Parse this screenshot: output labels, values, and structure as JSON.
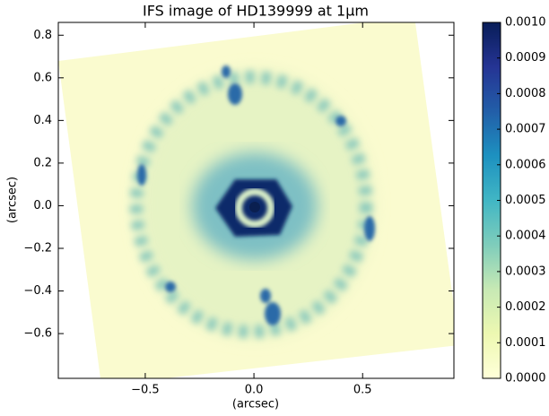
{
  "chart_data": {
    "type": "heatmap",
    "title": "IFS image of HD139999 at 1μm",
    "xlabel": "(arcsec)",
    "ylabel": "(arcsec)",
    "xlim": [
      -0.9,
      0.92
    ],
    "ylim": [
      -0.81,
      0.86
    ],
    "xticks": [
      {
        "value": -0.5,
        "label": "−0.5"
      },
      {
        "value": 0,
        "label": "0.0"
      },
      {
        "value": 0.5,
        "label": "0.5"
      }
    ],
    "yticks": [
      {
        "value": -0.6,
        "label": "−0.6"
      },
      {
        "value": -0.4,
        "label": "−0.4"
      },
      {
        "value": -0.2,
        "label": "−0.2"
      },
      {
        "value": 0,
        "label": "0.0"
      },
      {
        "value": 0.2,
        "label": "0.2"
      },
      {
        "value": 0.4,
        "label": "0.4"
      },
      {
        "value": 0.6,
        "label": "0.6"
      },
      {
        "value": 0.8,
        "label": "0.8"
      }
    ],
    "colormap": "YlGnBu",
    "clim": [
      0,
      0.001
    ],
    "cticks": [
      {
        "value": 0,
        "label": "0.0000"
      },
      {
        "value": 0.0001,
        "label": "0.0001"
      },
      {
        "value": 0.0002,
        "label": "0.0002"
      },
      {
        "value": 0.0003,
        "label": "0.0003"
      },
      {
        "value": 0.0004,
        "label": "0.0004"
      },
      {
        "value": 0.0005,
        "label": "0.0005"
      },
      {
        "value": 0.0006,
        "label": "0.0006"
      },
      {
        "value": 0.0007,
        "label": "0.0007"
      },
      {
        "value": 0.0008,
        "label": "0.0008"
      },
      {
        "value": 0.0009,
        "label": "0.0009"
      },
      {
        "value": 0.001,
        "label": "0.0010"
      }
    ]
  }
}
